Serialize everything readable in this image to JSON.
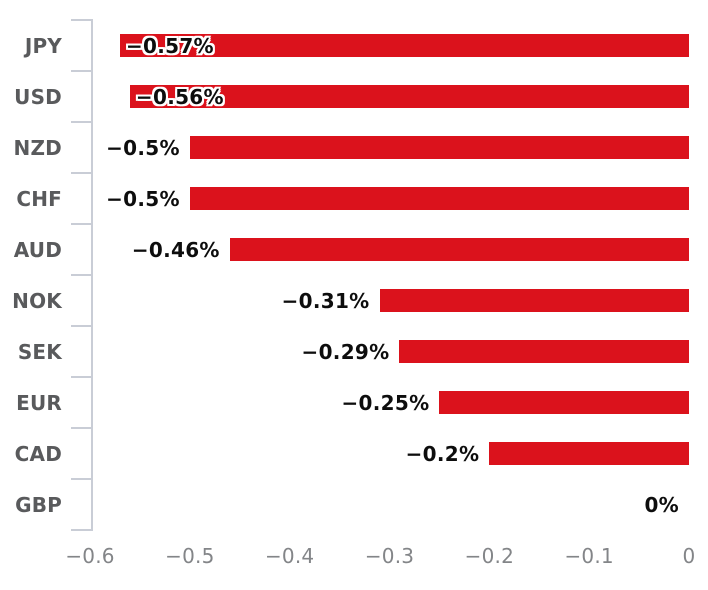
{
  "chart_data": {
    "type": "bar",
    "orientation": "horizontal",
    "title": "",
    "xlabel": "",
    "ylabel": "",
    "legend": "none",
    "grid": false,
    "categories": [
      "JPY",
      "USD",
      "NZD",
      "CHF",
      "AUD",
      "NOK",
      "SEK",
      "EUR",
      "CAD",
      "GBP"
    ],
    "values": [
      -0.57,
      -0.56,
      -0.5,
      -0.5,
      -0.46,
      -0.31,
      -0.29,
      -0.25,
      -0.2,
      0
    ],
    "point_labels": [
      "−0.57%",
      "−0.56%",
      "−0.5%",
      "−0.5%",
      "−0.46%",
      "−0.31%",
      "−0.29%",
      "−0.25%",
      "−0.2%",
      "0%"
    ],
    "label_placement": [
      "inside",
      "inside",
      "outside",
      "outside",
      "outside",
      "outside",
      "outside",
      "outside",
      "outside",
      "outside"
    ],
    "xlim": [
      -0.6,
      0
    ],
    "x_tick_values": [
      -0.6,
      -0.5,
      -0.4,
      -0.3,
      -0.2,
      -0.1,
      0
    ],
    "x_ticks": [
      "−0.6",
      "−0.5",
      "−0.4",
      "−0.3",
      "−0.2",
      "−0.1",
      "0"
    ],
    "colors": {
      "bar": "#db121c",
      "axis": "#c9cdd6",
      "category_text": "#595a5c",
      "tick_text": "#838588",
      "value_text": "#0d0d0d",
      "background": "#ffffff"
    }
  }
}
